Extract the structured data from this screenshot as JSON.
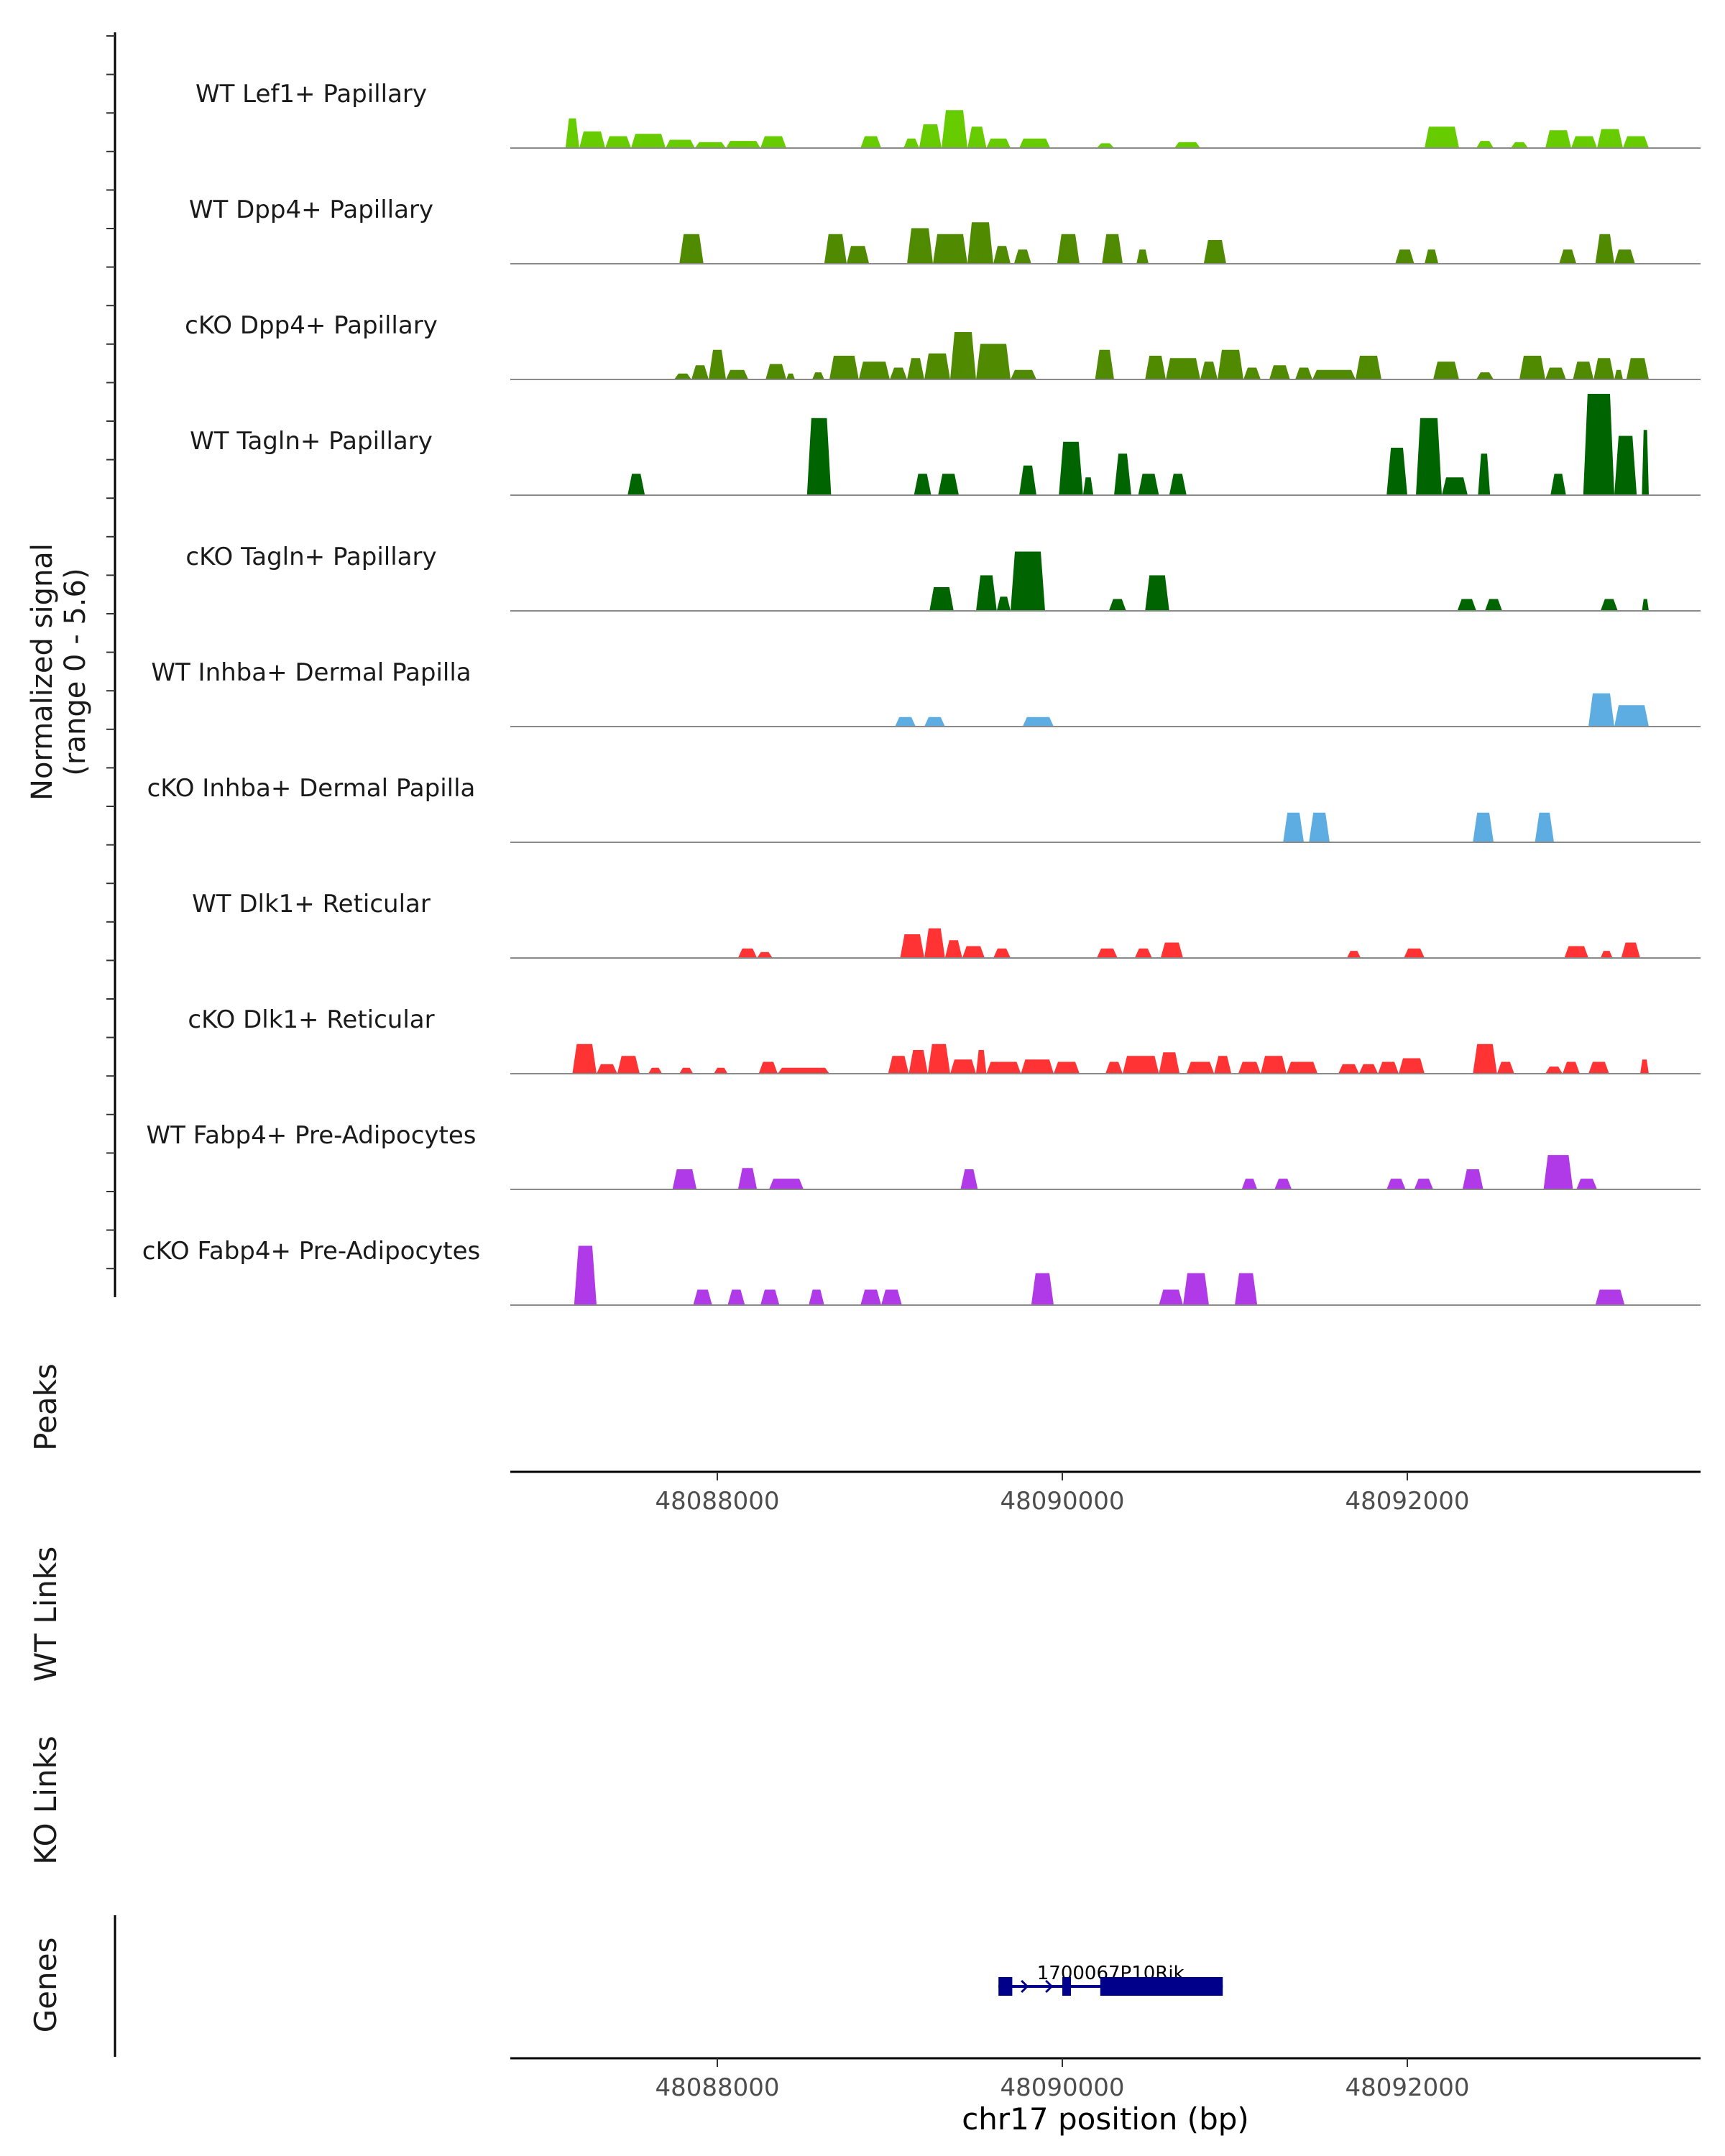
{
  "chart_data": {
    "type": "area",
    "title": "",
    "xlabel": "chr17 position (bp)",
    "x_range": [
      48086800,
      48093700
    ],
    "x_ticks": [
      48088000,
      48090000,
      48092000
    ],
    "x_tick_labels": [
      "48088000",
      "48090000",
      "48092000"
    ],
    "signal_ylabel": [
      "Normalized signal",
      "(range 0 - 5.6)"
    ],
    "ylim": [
      0,
      5.6
    ],
    "panel_labels": {
      "peaks": "Peaks",
      "wt_links": "WT Links",
      "ko_links": "KO Links",
      "genes": "Genes"
    },
    "gene": {
      "name": "1700067P10Rik",
      "start": 48089630,
      "end": 48090930,
      "exons": [
        [
          48089630,
          48089710
        ],
        [
          48090000,
          48090050
        ],
        [
          48090220,
          48090930
        ]
      ]
    },
    "tracks": [
      {
        "label": "WT Lef1+ Papillary",
        "color": "#66cc00",
        "regions": [
          [
            48087120,
            48087200,
            2.5
          ],
          [
            48087200,
            48087350,
            1.4
          ],
          [
            48087350,
            48087500,
            1.0
          ],
          [
            48087500,
            48087700,
            1.2
          ],
          [
            48087700,
            48087870,
            0.7
          ],
          [
            48087870,
            48088050,
            0.5
          ],
          [
            48088050,
            48088250,
            0.6
          ],
          [
            48088250,
            48088400,
            1.0
          ],
          [
            48088830,
            48088950,
            1.0
          ],
          [
            48089080,
            48089170,
            0.8
          ],
          [
            48089170,
            48089300,
            2.0
          ],
          [
            48089300,
            48089450,
            3.2
          ],
          [
            48089450,
            48089560,
            1.8
          ],
          [
            48089560,
            48089700,
            0.8
          ],
          [
            48089750,
            48089930,
            0.8
          ],
          [
            48090200,
            48090300,
            0.4
          ],
          [
            48090650,
            48090800,
            0.5
          ],
          [
            48092100,
            48092300,
            1.8
          ],
          [
            48092400,
            48092500,
            0.6
          ],
          [
            48092600,
            48092700,
            0.5
          ],
          [
            48092800,
            48092950,
            1.5
          ],
          [
            48092950,
            48093100,
            1.0
          ],
          [
            48093100,
            48093250,
            1.6
          ],
          [
            48093250,
            48093400,
            1.0
          ]
        ]
      },
      {
        "label": "WT Dpp4+ Papillary",
        "color": "#4f8a00",
        "regions": [
          [
            48087780,
            48087920,
            2.5
          ],
          [
            48088620,
            48088750,
            2.5
          ],
          [
            48088750,
            48088880,
            1.5
          ],
          [
            48089100,
            48089250,
            3.0
          ],
          [
            48089250,
            48089450,
            2.5
          ],
          [
            48089450,
            48089600,
            3.5
          ],
          [
            48089600,
            48089700,
            1.5
          ],
          [
            48089720,
            48089820,
            1.2
          ],
          [
            48089970,
            48090100,
            2.5
          ],
          [
            48090230,
            48090350,
            2.5
          ],
          [
            48090430,
            48090500,
            1.2
          ],
          [
            48090820,
            48090950,
            2.0
          ],
          [
            48091930,
            48092040,
            1.2
          ],
          [
            48092100,
            48092180,
            1.2
          ],
          [
            48092880,
            48092980,
            1.2
          ],
          [
            48093090,
            48093200,
            2.5
          ],
          [
            48093200,
            48093320,
            1.2
          ]
        ]
      },
      {
        "label": "cKO Dpp4+ Papillary",
        "color": "#4f8a00",
        "regions": [
          [
            48087750,
            48087850,
            0.5
          ],
          [
            48087850,
            48087950,
            1.2
          ],
          [
            48087950,
            48088050,
            2.5
          ],
          [
            48088050,
            48088180,
            0.8
          ],
          [
            48088280,
            48088400,
            1.3
          ],
          [
            48088400,
            48088450,
            0.5
          ],
          [
            48088550,
            48088620,
            0.6
          ],
          [
            48088650,
            48088820,
            2.0
          ],
          [
            48088820,
            48089000,
            1.5
          ],
          [
            48089000,
            48089100,
            1.0
          ],
          [
            48089100,
            48089200,
            1.8
          ],
          [
            48089200,
            48089350,
            2.2
          ],
          [
            48089350,
            48089500,
            4.0
          ],
          [
            48089500,
            48089700,
            3.0
          ],
          [
            48089700,
            48089850,
            0.8
          ],
          [
            48090190,
            48090300,
            2.5
          ],
          [
            48090480,
            48090600,
            2.0
          ],
          [
            48090600,
            48090800,
            1.8
          ],
          [
            48090800,
            48090900,
            1.5
          ],
          [
            48090900,
            48091050,
            2.5
          ],
          [
            48091050,
            48091150,
            1.0
          ],
          [
            48091200,
            48091320,
            1.2
          ],
          [
            48091350,
            48091450,
            1.0
          ],
          [
            48091450,
            48091700,
            0.8
          ],
          [
            48091700,
            48091850,
            2.0
          ],
          [
            48092150,
            48092300,
            1.5
          ],
          [
            48092400,
            48092500,
            0.6
          ],
          [
            48092650,
            48092800,
            2.0
          ],
          [
            48092800,
            48092920,
            1.0
          ],
          [
            48092960,
            48093080,
            1.5
          ],
          [
            48093080,
            48093200,
            1.8
          ],
          [
            48093200,
            48093250,
            0.8
          ],
          [
            48093270,
            48093400,
            1.8
          ]
        ]
      },
      {
        "label": "WT Tagln+ Papillary",
        "color": "#006400",
        "regions": [
          [
            48087480,
            48087580,
            1.8
          ],
          [
            48088520,
            48088660,
            6.5
          ],
          [
            48089140,
            48089240,
            1.8
          ],
          [
            48089280,
            48089400,
            1.8
          ],
          [
            48089750,
            48089850,
            2.5
          ],
          [
            48089980,
            48090120,
            4.5
          ],
          [
            48090120,
            48090180,
            1.5
          ],
          [
            48090300,
            48090400,
            3.5
          ],
          [
            48090440,
            48090560,
            1.8
          ],
          [
            48090620,
            48090720,
            1.8
          ],
          [
            48091880,
            48092000,
            4.0
          ],
          [
            48092050,
            48092200,
            6.5
          ],
          [
            48092200,
            48092350,
            1.5
          ],
          [
            48092410,
            48092480,
            3.5
          ],
          [
            48092830,
            48092920,
            1.8
          ],
          [
            48093020,
            48093200,
            9.5
          ],
          [
            48093200,
            48093330,
            5.0
          ],
          [
            48093360,
            48093400,
            5.5
          ]
        ]
      },
      {
        "label": "cKO Tagln+ Papillary",
        "color": "#006400",
        "regions": [
          [
            48089230,
            48089370,
            2.0
          ],
          [
            48089500,
            48089620,
            3.0
          ],
          [
            48089620,
            48089700,
            1.2
          ],
          [
            48089700,
            48089900,
            5.0
          ],
          [
            48090270,
            48090370,
            1.0
          ],
          [
            48090480,
            48090620,
            3.0
          ],
          [
            48092290,
            48092400,
            1.0
          ],
          [
            48092450,
            48092550,
            1.0
          ],
          [
            48093120,
            48093220,
            1.0
          ],
          [
            48093360,
            48093400,
            1.0
          ]
        ]
      },
      {
        "label": "WT Inhba+ Dermal Papilla",
        "color": "#5dade2",
        "regions": [
          [
            48089030,
            48089150,
            0.8
          ],
          [
            48089200,
            48089320,
            0.8
          ],
          [
            48089770,
            48089950,
            0.8
          ],
          [
            48093050,
            48093200,
            2.8
          ],
          [
            48093200,
            48093400,
            1.8
          ]
        ]
      },
      {
        "label": "cKO Inhba+ Dermal Papilla",
        "color": "#5dade2",
        "regions": [
          [
            48091280,
            48091400,
            2.5
          ],
          [
            48091430,
            48091550,
            2.5
          ],
          [
            48092380,
            48092500,
            2.5
          ],
          [
            48092740,
            48092850,
            2.5
          ]
        ]
      },
      {
        "label": "WT Dlk1+ Reticular",
        "color": "#ff3333",
        "regions": [
          [
            48088120,
            48088230,
            0.8
          ],
          [
            48088230,
            48088320,
            0.5
          ],
          [
            48089060,
            48089200,
            2.0
          ],
          [
            48089200,
            48089320,
            2.5
          ],
          [
            48089320,
            48089420,
            1.5
          ],
          [
            48089420,
            48089550,
            1.0
          ],
          [
            48089600,
            48089700,
            0.8
          ],
          [
            48090200,
            48090320,
            0.8
          ],
          [
            48090420,
            48090520,
            0.8
          ],
          [
            48090570,
            48090700,
            1.3
          ],
          [
            48091650,
            48091730,
            0.6
          ],
          [
            48091980,
            48092100,
            0.8
          ],
          [
            48092910,
            48093050,
            1.0
          ],
          [
            48093120,
            48093190,
            0.6
          ],
          [
            48093240,
            48093350,
            1.3
          ]
        ]
      },
      {
        "label": "cKO Dlk1+ Reticular",
        "color": "#ff3333",
        "regions": [
          [
            48087160,
            48087300,
            2.5
          ],
          [
            48087300,
            48087420,
            0.8
          ],
          [
            48087420,
            48087550,
            1.5
          ],
          [
            48087600,
            48087680,
            0.5
          ],
          [
            48087780,
            48087860,
            0.5
          ],
          [
            48087980,
            48088060,
            0.5
          ],
          [
            48088240,
            48088350,
            1.0
          ],
          [
            48088350,
            48088650,
            0.5
          ],
          [
            48088990,
            48089110,
            1.5
          ],
          [
            48089110,
            48089220,
            2.0
          ],
          [
            48089220,
            48089350,
            2.5
          ],
          [
            48089350,
            48089500,
            1.2
          ],
          [
            48089500,
            48089560,
            2.0
          ],
          [
            48089560,
            48089760,
            1.0
          ],
          [
            48089760,
            48089950,
            1.2
          ],
          [
            48089950,
            48090100,
            1.0
          ],
          [
            48090250,
            48090350,
            1.0
          ],
          [
            48090350,
            48090560,
            1.5
          ],
          [
            48090560,
            48090680,
            1.8
          ],
          [
            48090720,
            48090880,
            1.0
          ],
          [
            48090880,
            48090980,
            1.5
          ],
          [
            48091020,
            48091150,
            1.0
          ],
          [
            48091150,
            48091300,
            1.5
          ],
          [
            48091300,
            48091480,
            1.0
          ],
          [
            48091600,
            48091720,
            0.8
          ],
          [
            48091720,
            48091830,
            0.8
          ],
          [
            48091830,
            48091950,
            1.0
          ],
          [
            48091950,
            48092100,
            1.3
          ],
          [
            48092380,
            48092520,
            2.5
          ],
          [
            48092520,
            48092620,
            1.0
          ],
          [
            48092800,
            48092900,
            0.6
          ],
          [
            48092900,
            48093000,
            1.0
          ],
          [
            48093050,
            48093170,
            1.0
          ],
          [
            48093350,
            48093400,
            1.2
          ]
        ]
      },
      {
        "label": "WT Fabp4+ Pre-Adipocytes",
        "color": "#b03ae8",
        "regions": [
          [
            48087740,
            48087880,
            1.7
          ],
          [
            48088120,
            48088230,
            1.8
          ],
          [
            48088300,
            48088500,
            0.9
          ],
          [
            48089410,
            48089510,
            1.7
          ],
          [
            48091040,
            48091130,
            0.9
          ],
          [
            48091230,
            48091330,
            0.9
          ],
          [
            48091880,
            48091990,
            0.9
          ],
          [
            48092040,
            48092150,
            0.9
          ],
          [
            48092320,
            48092440,
            1.7
          ],
          [
            48092790,
            48092960,
            2.9
          ],
          [
            48092980,
            48093100,
            0.9
          ]
        ]
      },
      {
        "label": "cKO Fabp4+ Pre-Adipocytes",
        "color": "#b03ae8",
        "regions": [
          [
            48087170,
            48087300,
            5.0
          ],
          [
            48087860,
            48087970,
            1.3
          ],
          [
            48088060,
            48088160,
            1.3
          ],
          [
            48088250,
            48088360,
            1.3
          ],
          [
            48088530,
            48088620,
            1.3
          ],
          [
            48088830,
            48088950,
            1.3
          ],
          [
            48088950,
            48089070,
            1.3
          ],
          [
            48089820,
            48089950,
            2.7
          ],
          [
            48090560,
            48090700,
            1.3
          ],
          [
            48090700,
            48090850,
            2.7
          ],
          [
            48091000,
            48091130,
            2.7
          ],
          [
            48093090,
            48093260,
            1.3
          ]
        ]
      }
    ]
  }
}
